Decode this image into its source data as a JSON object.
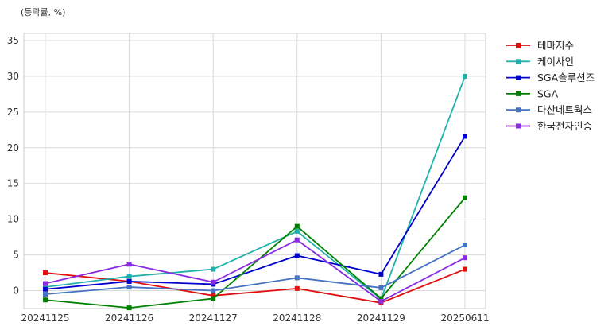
{
  "chart_data": {
    "type": "line",
    "unit_label": "(등락률, %)",
    "categories": [
      "20241125",
      "20241126",
      "20241127",
      "20241128",
      "20241129",
      "20250611"
    ],
    "ylim": [
      -2.5,
      36
    ],
    "yticks": [
      0,
      5,
      10,
      15,
      20,
      25,
      30,
      35
    ],
    "grid": true,
    "legend_position": "right",
    "marker": "square",
    "series": [
      {
        "name": "테마지수",
        "color": "#e01010",
        "values": [
          2.5,
          1.3,
          -0.7,
          0.3,
          -1.7,
          3.0
        ]
      },
      {
        "name": "케이사인",
        "color": "#20b2aa",
        "values": [
          0.5,
          2.0,
          3.0,
          8.3,
          -1.2,
          30.0
        ]
      },
      {
        "name": "SGA솔루션즈",
        "color": "#0000cc",
        "values": [
          0.2,
          1.3,
          0.9,
          4.9,
          2.3,
          21.6
        ]
      },
      {
        "name": "SGA",
        "color": "#008000",
        "values": [
          -1.3,
          -2.4,
          -1.1,
          9.0,
          -1.1,
          13.0
        ]
      },
      {
        "name": "다산네트웍스",
        "color": "#4472c4",
        "values": [
          -0.5,
          0.5,
          0.0,
          1.8,
          0.4,
          6.4
        ]
      },
      {
        "name": "한국전자인증",
        "color": "#8a2be2",
        "values": [
          1.0,
          3.7,
          1.2,
          7.1,
          -1.5,
          4.6
        ]
      }
    ]
  }
}
